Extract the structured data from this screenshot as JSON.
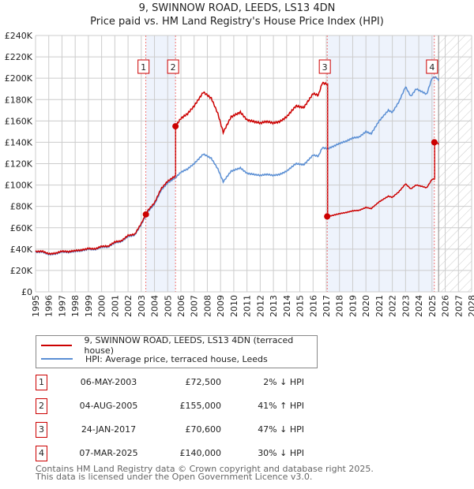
{
  "title": "9, SWINNOW ROAD, LEEDS, LS13 4DN",
  "subtitle": "Price paid vs. HM Land Registry's House Price Index (HPI)",
  "chart_data": {
    "type": "line",
    "title": "9, SWINNOW ROAD, LEEDS, LS13 4DN",
    "xlim": [
      1995,
      2028
    ],
    "ylim": [
      0,
      240000
    ],
    "x_ticks": [
      "1995",
      "1996",
      "1997",
      "1998",
      "1999",
      "2000",
      "2001",
      "2002",
      "2003",
      "2004",
      "2005",
      "2006",
      "2007",
      "2008",
      "2009",
      "2010",
      "2011",
      "2012",
      "2013",
      "2014",
      "2015",
      "2016",
      "2017",
      "2018",
      "2019",
      "2020",
      "2021",
      "2022",
      "2023",
      "2024",
      "2025",
      "2026",
      "2027",
      "2028"
    ],
    "y_ticks": [
      {
        "v": 0,
        "label": "£0"
      },
      {
        "v": 20000,
        "label": "£20K"
      },
      {
        "v": 40000,
        "label": "£40K"
      },
      {
        "v": 60000,
        "label": "£60K"
      },
      {
        "v": 80000,
        "label": "£80K"
      },
      {
        "v": 100000,
        "label": "£100K"
      },
      {
        "v": 120000,
        "label": "£120K"
      },
      {
        "v": 140000,
        "label": "£140K"
      },
      {
        "v": 160000,
        "label": "£160K"
      },
      {
        "v": 180000,
        "label": "£180K"
      },
      {
        "v": 200000,
        "label": "£200K"
      },
      {
        "v": 220000,
        "label": "£220K"
      },
      {
        "v": 240000,
        "label": "£240K"
      }
    ],
    "forecast_start": 2025.5,
    "series": [
      {
        "name": "HPI: Average price, terraced house, Leeds",
        "color": "#5b8fd4",
        "x": [
          1995,
          1995.5,
          1996,
          1996.5,
          1997,
          1997.5,
          1998,
          1998.5,
          1999,
          1999.5,
          2000,
          2000.5,
          2001,
          2001.5,
          2002,
          2002.5,
          2003,
          2003.5,
          2004,
          2004.5,
          2005,
          2005.6,
          2006,
          2006.5,
          2007,
          2007.7,
          2008.3,
          2008.8,
          2009.2,
          2009.8,
          2010.5,
          2011,
          2011.5,
          2012,
          2012.5,
          2013,
          2013.5,
          2014,
          2014.7,
          2015.3,
          2016,
          2016.4,
          2016.7,
          2017.1,
          2017.5,
          2018,
          2018.5,
          2019,
          2019.5,
          2020,
          2020.4,
          2021,
          2021.7,
          2022,
          2022.5,
          2023,
          2023.4,
          2023.8,
          2024.3,
          2024.6,
          2025,
          2025.3,
          2025.5
        ],
        "y": [
          37000,
          37500,
          35000,
          35500,
          37500,
          37000,
          38000,
          38500,
          40000,
          39500,
          42000,
          42000,
          46000,
          47000,
          52000,
          53000,
          63000,
          75000,
          82000,
          95000,
          102000,
          107000,
          112000,
          115000,
          120000,
          129000,
          125000,
          115000,
          103000,
          113000,
          116000,
          111000,
          110000,
          109000,
          110000,
          109000,
          110000,
          113000,
          120000,
          119000,
          128000,
          127000,
          135000,
          134000,
          136000,
          139000,
          141000,
          144000,
          145000,
          150000,
          148000,
          160000,
          170000,
          168000,
          178000,
          192000,
          183000,
          190000,
          187000,
          185000,
          200000,
          201000,
          198000
        ]
      },
      {
        "name": "9, SWINNOW ROAD, LEEDS, LS13 4DN (terraced house)",
        "color": "#cc0000",
        "derived_from_hpi_and_sales": true
      }
    ],
    "sales": [
      {
        "n": "1",
        "x": 2003.35,
        "date": "06-MAY-2003",
        "price": 72500,
        "price_label": "£72,500",
        "hpi": "2% ↓ HPI"
      },
      {
        "n": "2",
        "x": 2005.59,
        "date": "04-AUG-2005",
        "price": 155000,
        "price_label": "£155,000",
        "hpi": "41% ↑ HPI"
      },
      {
        "n": "3",
        "x": 2017.07,
        "date": "24-JAN-2017",
        "price": 70600,
        "price_label": "£70,600",
        "hpi": "47% ↓ HPI"
      },
      {
        "n": "4",
        "x": 2025.18,
        "date": "07-MAR-2025",
        "price": 140000,
        "price_label": "£140,000",
        "hpi": "30% ↓ HPI"
      }
    ]
  },
  "legend": {
    "red": "9, SWINNOW ROAD, LEEDS, LS13 4DN (terraced house)",
    "blue": "HPI: Average price, terraced house, Leeds"
  },
  "footer": {
    "line1": "Contains HM Land Registry data © Crown copyright and database right 2025.",
    "line2": "This data is licensed under the Open Government Licence v3.0."
  }
}
